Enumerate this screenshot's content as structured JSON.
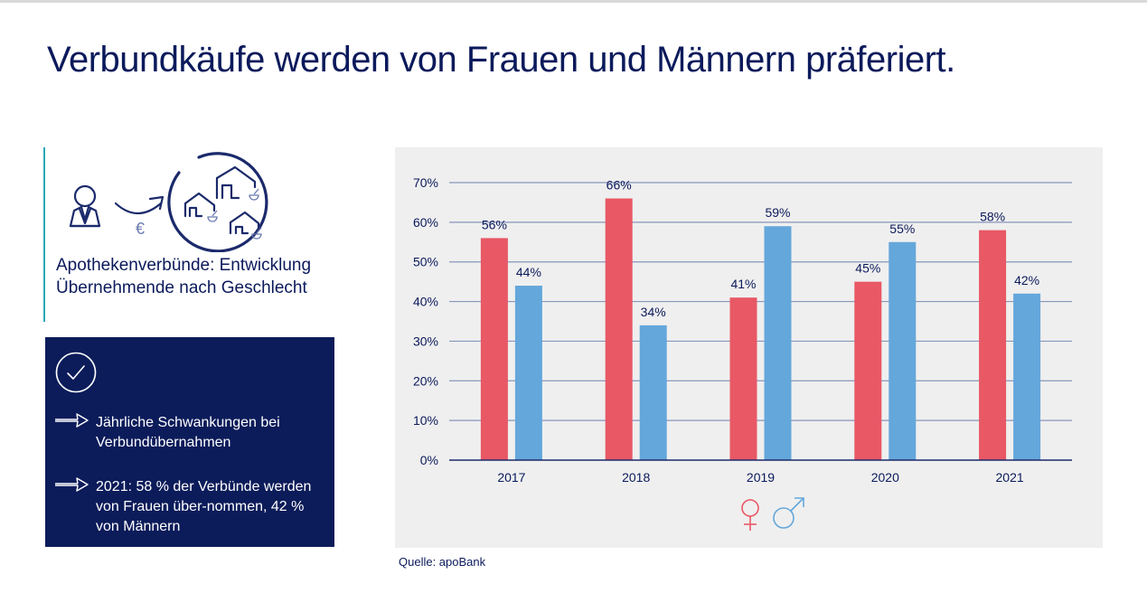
{
  "page": {
    "title": "Verbundkäufe werden von Frauen und Männern präferiert."
  },
  "infobox": {
    "icon": "person-euro-pharmacies-icon",
    "currency_symbol": "€",
    "line1": "Apothekenverbünde: Entwicklung",
    "line2": "Übernehmende nach Geschlecht"
  },
  "summary": {
    "icon": "check-circle-icon",
    "bullets": [
      {
        "icon": "arrow-right-icon",
        "text": "Jährliche Schwankungen bei Verbundübernahmen"
      },
      {
        "icon": "arrow-right-icon",
        "text": "2021: 58 % der Verbünde werden von Frauen über-nommen, 42 % von Männern"
      }
    ]
  },
  "source": "Quelle: apoBank",
  "colors": {
    "navy": "#0b1a5b",
    "female": "#e85865",
    "male": "#64a7db",
    "panel": "#efefef",
    "accent_line": "#2aa7b8"
  },
  "chart_data": {
    "type": "bar",
    "title": "Apothekenverbünde: Entwicklung Übernehmende nach Geschlecht",
    "xlabel": "",
    "ylabel": "",
    "categories": [
      "2017",
      "2018",
      "2019",
      "2020",
      "2021"
    ],
    "series": [
      {
        "name": "Frauen",
        "symbol": "♀",
        "color": "#e85865",
        "values": [
          56,
          66,
          41,
          45,
          58
        ],
        "labels": [
          "56%",
          "66%",
          "41%",
          "45%",
          "58%"
        ]
      },
      {
        "name": "Männer",
        "symbol": "♂",
        "color": "#64a7db",
        "values": [
          44,
          34,
          59,
          55,
          42
        ],
        "labels": [
          "44%",
          "34%",
          "59%",
          "55%",
          "42%"
        ]
      }
    ],
    "ylim": [
      0,
      70
    ],
    "yticks": [
      0,
      10,
      20,
      30,
      40,
      50,
      60,
      70
    ],
    "ytick_labels": [
      "0%",
      "10%",
      "20%",
      "30%",
      "40%",
      "50%",
      "60%",
      "70%"
    ],
    "grid": true,
    "legend": "bottom-center"
  }
}
